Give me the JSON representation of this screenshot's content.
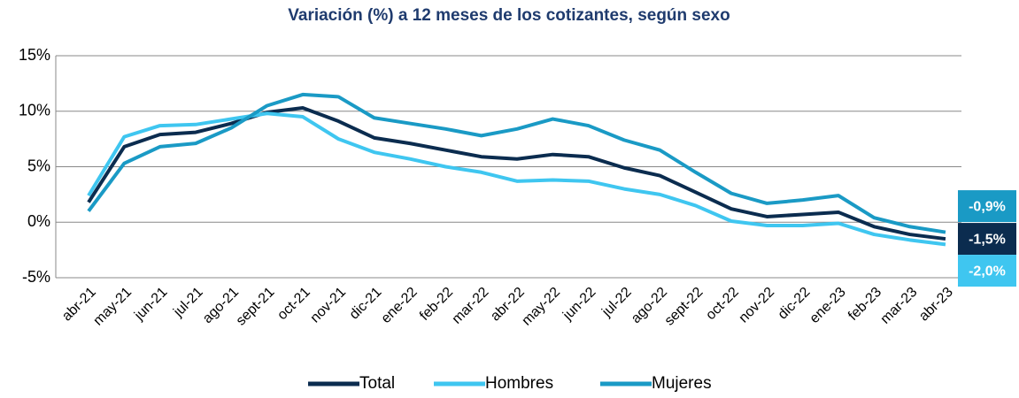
{
  "chart_data": {
    "type": "line",
    "title": "Variación (%) a 12 meses de los cotizantes, según sexo",
    "categories": [
      "abr-21",
      "may-21",
      "jun-21",
      "jul-21",
      "ago-21",
      "sept-21",
      "oct-21",
      "nov-21",
      "dic-21",
      "ene-22",
      "feb-22",
      "mar-22",
      "abr-22",
      "may-22",
      "jun-22",
      "jul-22",
      "ago-22",
      "sept-22",
      "oct-22",
      "nov-22",
      "dic-22",
      "ene-23",
      "feb-23",
      "mar-23",
      "abr-23"
    ],
    "series": [
      {
        "name": "Total",
        "color": "#0b2c4f",
        "values": [
          1.8,
          6.8,
          7.9,
          8.1,
          8.9,
          9.9,
          10.3,
          9.1,
          7.6,
          7.1,
          6.5,
          5.9,
          5.7,
          6.1,
          5.9,
          4.9,
          4.2,
          2.7,
          1.2,
          0.5,
          0.7,
          0.9,
          -0.4,
          -1.1,
          -1.5
        ],
        "value_labels": [
          null,
          null,
          null,
          null,
          null,
          null,
          null,
          null,
          null,
          null,
          null,
          null,
          null,
          null,
          null,
          null,
          null,
          null,
          null,
          null,
          null,
          null,
          null,
          null,
          "-1,5%"
        ]
      },
      {
        "name": "Hombres",
        "color": "#3fc6f0",
        "values": [
          2.4,
          7.7,
          8.7,
          8.8,
          9.3,
          9.8,
          9.5,
          7.5,
          6.3,
          5.7,
          5.0,
          4.5,
          3.7,
          3.8,
          3.7,
          3.0,
          2.5,
          1.5,
          0.1,
          -0.3,
          -0.3,
          -0.1,
          -1.1,
          -1.6,
          -2.0
        ],
        "value_labels": [
          null,
          null,
          null,
          null,
          null,
          null,
          null,
          null,
          null,
          null,
          null,
          null,
          null,
          null,
          null,
          null,
          null,
          null,
          null,
          null,
          null,
          null,
          null,
          null,
          "-2,0%"
        ]
      },
      {
        "name": "Mujeres",
        "color": "#1a9ac5",
        "values": [
          1.0,
          5.3,
          6.8,
          7.1,
          8.5,
          10.5,
          11.5,
          11.3,
          9.4,
          8.9,
          8.4,
          7.8,
          8.4,
          9.3,
          8.7,
          7.4,
          6.5,
          4.5,
          2.6,
          1.7,
          2.0,
          2.4,
          0.4,
          -0.4,
          -0.9
        ],
        "value_labels": [
          null,
          null,
          null,
          null,
          null,
          null,
          null,
          null,
          null,
          null,
          null,
          null,
          null,
          null,
          null,
          null,
          null,
          null,
          null,
          null,
          null,
          null,
          null,
          null,
          "-0,9%"
        ]
      }
    ],
    "ylim": [
      -5,
      15
    ],
    "yticks": [
      {
        "value": -5,
        "label": "-5%"
      },
      {
        "value": 0,
        "label": "0%"
      },
      {
        "value": 5,
        "label": "5%"
      },
      {
        "value": 10,
        "label": "10%"
      },
      {
        "value": 15,
        "label": "15%"
      }
    ],
    "grid": true,
    "legend": "bottom"
  }
}
